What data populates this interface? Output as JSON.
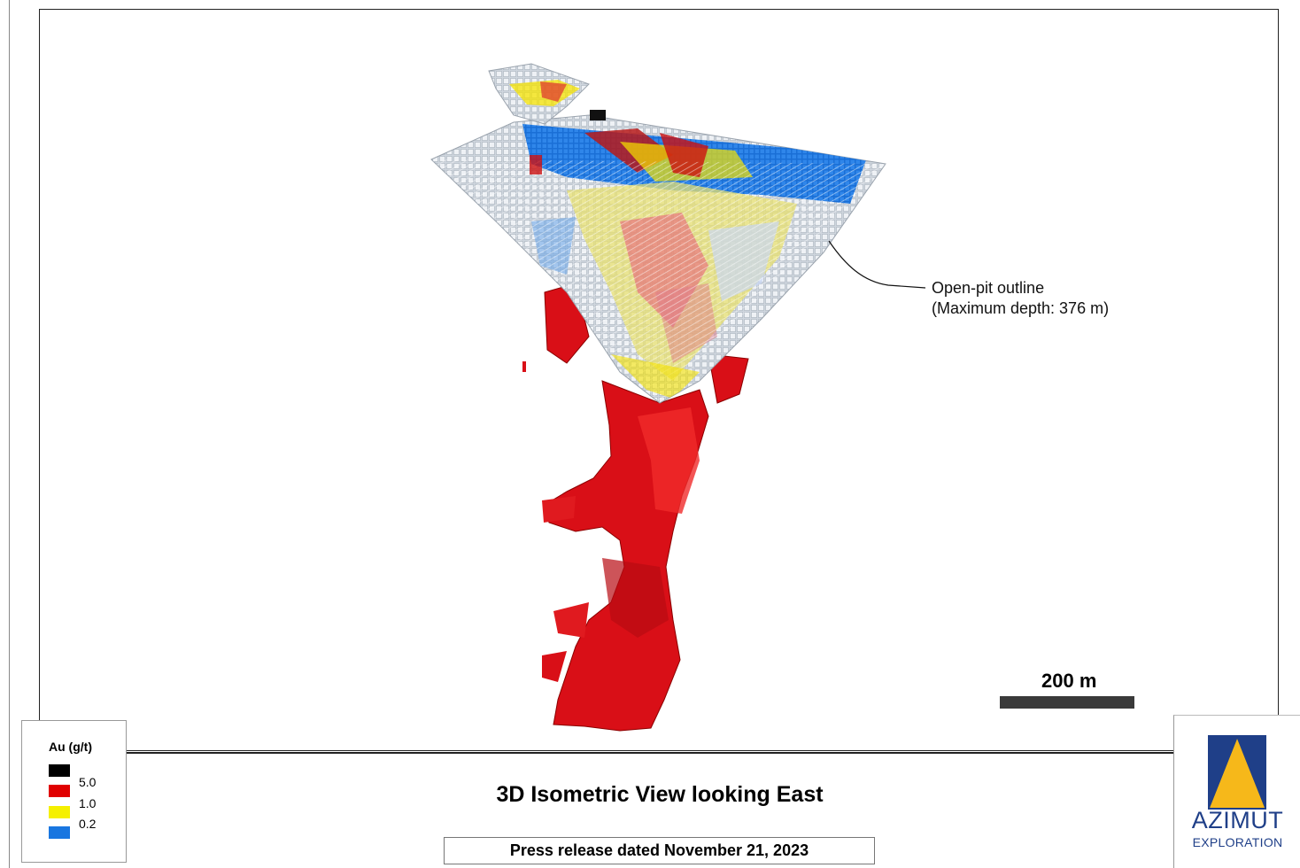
{
  "callout": {
    "line1": "Open-pit outline",
    "line2": "(Maximum depth: 376 m)"
  },
  "scale": {
    "label": "200 m"
  },
  "legend": {
    "title": "Au (g/t)",
    "items": [
      {
        "color": "#000000",
        "label": ""
      },
      {
        "color": "#e00000",
        "label": "5.0"
      },
      {
        "color": "#f5f000",
        "label": "1.0"
      },
      {
        "color": "#1976e0",
        "label": "0.2"
      }
    ]
  },
  "title": "3D Isometric View looking East",
  "press_release": "Press release dated November 21, 2023",
  "logo": {
    "name": "AZIMUT",
    "sub": "EXPLORATION"
  },
  "colors": {
    "high_grade": "#e00000",
    "very_high_grade": "#000000",
    "mid_grade": "#f5f000",
    "low_grade": "#1976e0",
    "pit_shell": "#d8dde3"
  }
}
